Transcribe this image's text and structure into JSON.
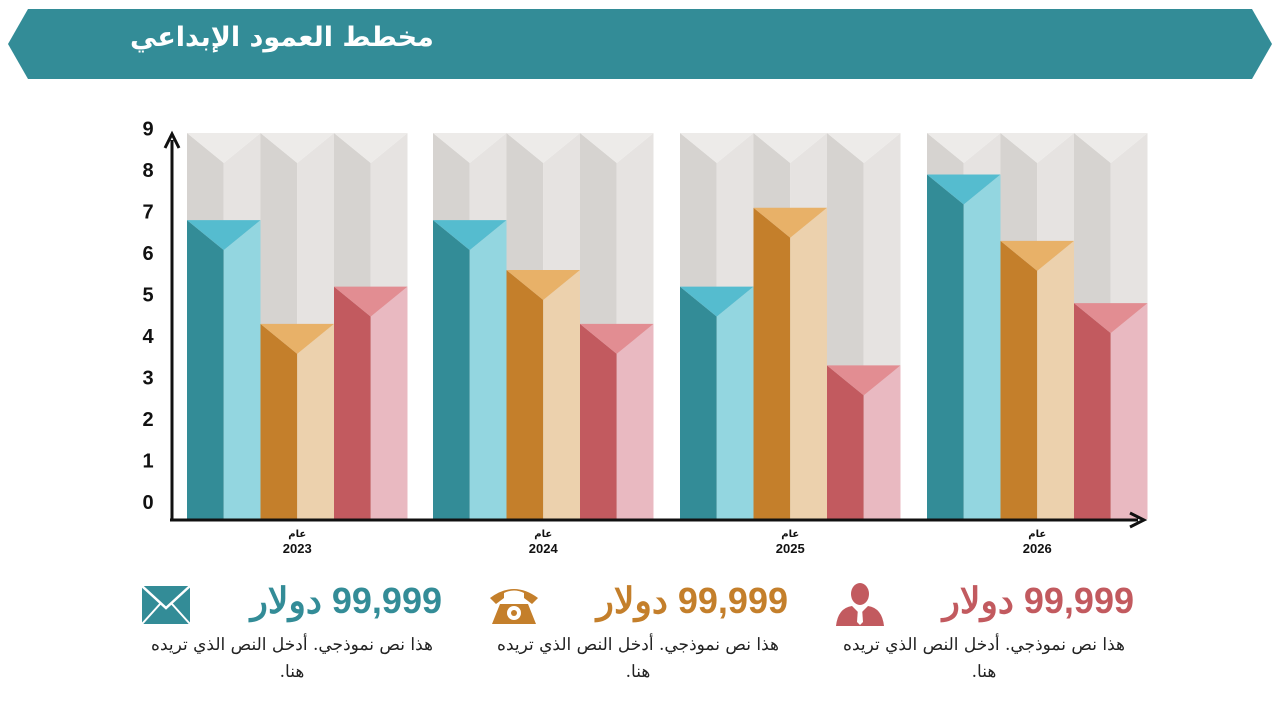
{
  "header": {
    "title": "مخطط العمود الإبداعي"
  },
  "colors": {
    "banner": "#338c97",
    "teal": "#338c97",
    "teal_light": "#93d6e0",
    "teal_cap": "#55bccf",
    "orange": "#c47f2b",
    "orange_light": "#ecd1ad",
    "orange_cap": "#e8b168",
    "red": "#c25a5f",
    "red_light": "#e9b9c1",
    "red_cap": "#e28d92",
    "bg_dark": "#d6d3d0",
    "bg_light": "#e6e3e1",
    "bg_cap": "#edebe9",
    "axis": "#111111"
  },
  "chart_data": {
    "type": "bar",
    "year_prefix": "عام",
    "categories": [
      "2023",
      "2024",
      "2025",
      "2026"
    ],
    "series": [
      {
        "color_key": "teal",
        "values": [
          7.2,
          7.2,
          5.6,
          8.3
        ]
      },
      {
        "color_key": "orange",
        "values": [
          4.7,
          6.0,
          7.5,
          6.7
        ]
      },
      {
        "color_key": "red",
        "values": [
          5.6,
          4.7,
          3.7,
          5.2
        ]
      }
    ],
    "y_ticks": [
      "0",
      "1",
      "2",
      "3",
      "4",
      "5",
      "6",
      "7",
      "8",
      "9"
    ],
    "ylim": [
      0,
      9.3
    ],
    "grid": false,
    "legend": "none"
  },
  "stats": [
    {
      "value": "99,999 دولار",
      "description": "هذا نص نموذجي. أدخل النص الذي تريده هنا.",
      "icon": "envelope-icon",
      "color_key": "teal"
    },
    {
      "value": "99,999 دولار",
      "description": "هذا نص نموذجي. أدخل النص الذي تريده هنا.",
      "icon": "telephone-icon",
      "color_key": "orange"
    },
    {
      "value": "99,999 دولار",
      "description": "هذا نص نموذجي. أدخل النص الذي تريده هنا.",
      "icon": "businessman-icon",
      "color_key": "red"
    }
  ]
}
